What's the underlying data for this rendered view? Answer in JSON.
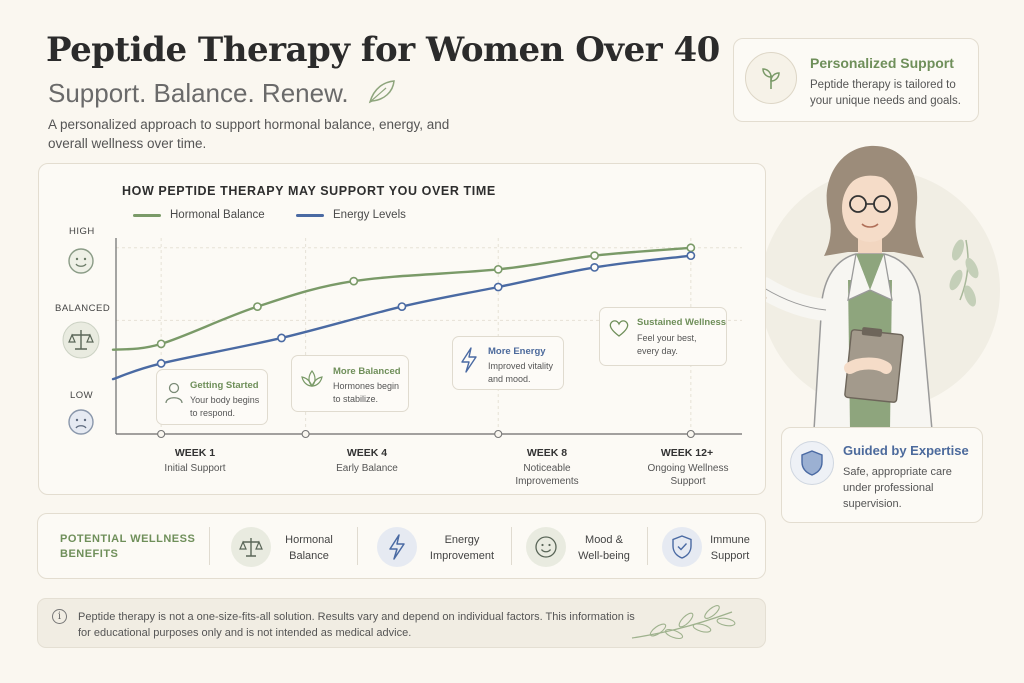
{
  "header": {
    "title": "Peptide Therapy for Women Over 40",
    "subtitle": "Support. Balance. Renew.",
    "description": "A personalized approach to support hormonal balance, energy, and overall wellness over time."
  },
  "personalized_support": {
    "title": "Personalized Support",
    "text": "Peptide therapy is tailored to your unique needs and goals.",
    "icon": "sprout-icon"
  },
  "guided_expertise": {
    "title": "Guided by Expertise",
    "text": "Safe, appropriate care under professional supervision.",
    "icon": "shield-icon"
  },
  "chart_data": {
    "type": "line",
    "title": "HOW PEPTIDE THERAPY MAY SUPPORT YOU OVER TIME",
    "y_levels": [
      "LOW",
      "BALANCED",
      "HIGH"
    ],
    "ylim": [
      0,
      10
    ],
    "xlim": [
      0,
      13
    ],
    "x_ticks": [
      {
        "x": 1,
        "label": "WEEK 1",
        "sub": "Initial Support"
      },
      {
        "x": 4,
        "label": "WEEK 4",
        "sub": "Early Balance"
      },
      {
        "x": 8,
        "label": "WEEK 8",
        "sub": "Noticeable Improvements"
      },
      {
        "x": 12,
        "label": "WEEK 12+",
        "sub": "Ongoing Wellness Support"
      }
    ],
    "series": [
      {
        "name": "Hormonal Balance",
        "color": "#7a9a68",
        "x": [
          0,
          1,
          3,
          5,
          8,
          10,
          12
        ],
        "y": [
          4.3,
          4.6,
          6.5,
          7.8,
          8.4,
          9.1,
          9.5
        ]
      },
      {
        "name": "Energy Levels",
        "color": "#4a6aa3",
        "x": [
          0,
          1,
          3.5,
          6,
          8,
          10,
          12
        ],
        "y": [
          2.8,
          3.6,
          4.9,
          6.5,
          7.5,
          8.5,
          9.1
        ]
      }
    ],
    "annotations": [
      {
        "title": "Getting Started",
        "text": "Your body begins to respond.",
        "icon": "person-icon",
        "color": "#6f8f5a"
      },
      {
        "title": "More Balanced",
        "text": "Hormones begin to stabilize.",
        "icon": "lotus-icon",
        "color": "#6f8f5a"
      },
      {
        "title": "More Energy",
        "text": "Improved vitality and mood.",
        "icon": "lightning-icon",
        "color": "#4c6a9c"
      },
      {
        "title": "Sustained Wellness",
        "text": "Feel your best, every day.",
        "icon": "heart-icon",
        "color": "#6f8f5a"
      }
    ]
  },
  "benefits": {
    "title": "POTENTIAL WELLNESS BENEFITS",
    "items": [
      {
        "label": "Hormonal Balance",
        "icon": "scale-icon",
        "bg": "#e9ebe0"
      },
      {
        "label": "Energy Improvement",
        "icon": "lightning-icon",
        "bg": "#e6eaf2"
      },
      {
        "label": "Mood & Well-being",
        "icon": "smile-icon",
        "bg": "#e9ebe0"
      },
      {
        "label": "Immune Support",
        "icon": "shield-check-icon",
        "bg": "#e6eaf2"
      }
    ]
  },
  "disclaimer": {
    "text": "Peptide therapy is not a one-size-fits-all solution. Results vary and depend on individual factors. This information is for educational purposes only and is not intended as medical advice."
  },
  "colors": {
    "green": "#7a9a68",
    "blue": "#4a6aa3",
    "background": "#faf7f0"
  }
}
